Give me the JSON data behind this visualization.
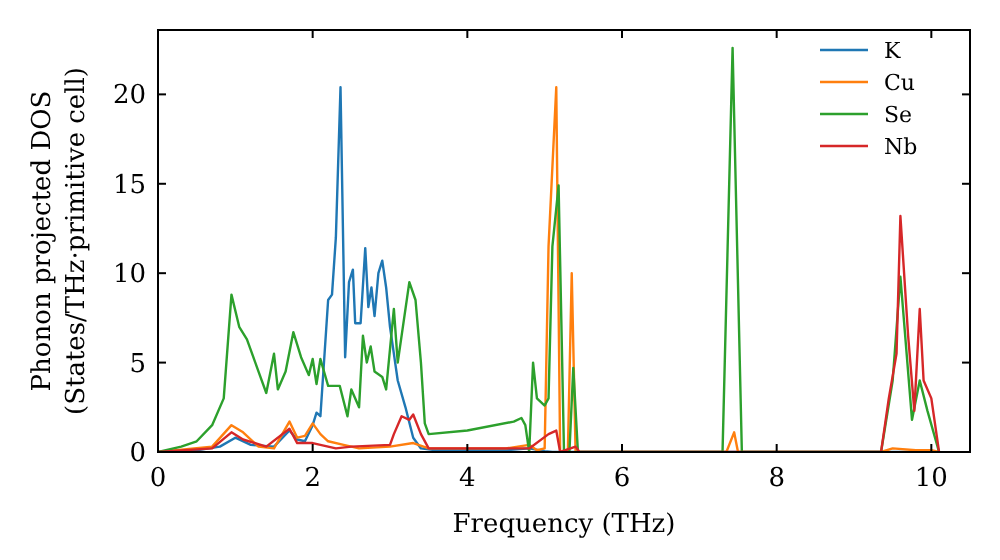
{
  "chart_data": {
    "type": "line",
    "xlabel": "Frequency (THz)",
    "ylabel": "Phonon projected DOS\n(States/THz·primitive cell)",
    "xlim": [
      0,
      10.5
    ],
    "ylim": [
      0,
      23.6
    ],
    "xticks": [
      0,
      2,
      4,
      6,
      8,
      10
    ],
    "yticks": [
      0,
      5,
      10,
      15,
      20
    ],
    "legend": "top right",
    "grid": false,
    "series": [
      {
        "name": "K",
        "color": "#1f77b4",
        "x": [
          0,
          0.5,
          0.8,
          1.0,
          1.2,
          1.5,
          1.7,
          1.8,
          1.9,
          2.0,
          2.05,
          2.1,
          2.2,
          2.25,
          2.3,
          2.36,
          2.42,
          2.47,
          2.52,
          2.55,
          2.62,
          2.68,
          2.72,
          2.76,
          2.8,
          2.85,
          2.9,
          2.95,
          3.0,
          3.05,
          3.1,
          3.2,
          3.3,
          3.4,
          3.6,
          4.5,
          4.8,
          5.0,
          5.1,
          10
        ],
        "values": [
          0,
          0.1,
          0.3,
          0.8,
          0.4,
          0.3,
          1.2,
          0.7,
          0.6,
          1.5,
          2.2,
          2.0,
          8.5,
          8.8,
          12,
          20.4,
          5.3,
          9.5,
          10.2,
          7.2,
          7.2,
          11.4,
          8.1,
          9.2,
          7.6,
          10,
          10.7,
          9.2,
          7.0,
          5.5,
          4,
          2.5,
          0.8,
          0.2,
          0.1,
          0.1,
          0.2,
          0.05,
          0,
          0
        ]
      },
      {
        "name": "Cu",
        "color": "#ff7f0e",
        "x": [
          0,
          0.7,
          0.95,
          1.1,
          1.3,
          1.5,
          1.7,
          1.8,
          1.9,
          2.0,
          2.1,
          2.2,
          2.4,
          2.6,
          3.0,
          3.3,
          3.5,
          4.5,
          4.8,
          4.9,
          5.0,
          5.05,
          5.15,
          5.2,
          5.3,
          5.35,
          5.4,
          7.35,
          7.45,
          7.5,
          9.35,
          9.5,
          9.8,
          10.0,
          10.1
        ],
        "values": [
          0,
          0.3,
          1.5,
          1.1,
          0.3,
          0.2,
          1.7,
          0.8,
          0.9,
          1.6,
          1.0,
          0.6,
          0.4,
          0.2,
          0.3,
          0.5,
          0.2,
          0.2,
          0.4,
          0.1,
          0.2,
          11.5,
          20.4,
          0,
          0,
          10.0,
          0,
          0,
          1.1,
          0,
          0,
          0.2,
          0.1,
          0.1,
          0
        ]
      },
      {
        "name": "Se",
        "color": "#2ca02c",
        "x": [
          0,
          0.3,
          0.5,
          0.7,
          0.85,
          0.95,
          1.05,
          1.15,
          1.3,
          1.4,
          1.5,
          1.55,
          1.65,
          1.75,
          1.85,
          1.95,
          2.0,
          2.05,
          2.1,
          2.2,
          2.35,
          2.45,
          2.5,
          2.6,
          2.65,
          2.7,
          2.75,
          2.8,
          2.9,
          2.95,
          3.05,
          3.1,
          3.25,
          3.33,
          3.4,
          3.45,
          3.5,
          4.0,
          4.6,
          4.7,
          4.75,
          4.8,
          4.85,
          4.9,
          5.0,
          5.05,
          5.1,
          5.18,
          5.25,
          5.32,
          5.37,
          5.43,
          7.3,
          7.43,
          7.55,
          9.35,
          9.5,
          9.6,
          9.75,
          9.85,
          9.95,
          10.1
        ],
        "values": [
          0,
          0.3,
          0.6,
          1.5,
          3,
          8.8,
          7,
          6.3,
          4.5,
          3.3,
          5.5,
          3.5,
          4.5,
          6.7,
          5.3,
          4.3,
          5.2,
          3.8,
          5.2,
          3.7,
          3.7,
          2.0,
          3.5,
          2.5,
          6.5,
          5.0,
          5.9,
          4.5,
          4.2,
          3.5,
          8.0,
          5.0,
          9.5,
          8.5,
          5,
          1.6,
          1.0,
          1.2,
          1.7,
          1.9,
          1.5,
          0,
          5.0,
          3.0,
          2.6,
          3.0,
          11.5,
          14.9,
          0,
          0,
          4.7,
          0,
          0,
          22.6,
          0,
          0,
          4.0,
          9.8,
          1.8,
          4.0,
          2.3,
          0
        ]
      },
      {
        "name": "Nb",
        "color": "#d62728",
        "x": [
          0,
          0.7,
          0.95,
          1.1,
          1.4,
          1.7,
          1.8,
          2.0,
          2.3,
          2.5,
          3.0,
          3.05,
          3.15,
          3.25,
          3.3,
          3.4,
          3.5,
          4.8,
          5.05,
          5.15,
          5.2,
          5.4,
          5.45,
          9.35,
          9.45,
          9.55,
          9.6,
          9.7,
          9.78,
          9.85,
          9.9,
          10.0,
          10.1
        ],
        "values": [
          0,
          0.2,
          1.1,
          0.7,
          0.3,
          1.3,
          0.5,
          0.5,
          0.2,
          0.3,
          0.4,
          1.0,
          2.0,
          1.8,
          2.1,
          1.0,
          0.2,
          0.2,
          1.0,
          1.2,
          0,
          0.3,
          0,
          0,
          3.0,
          5.5,
          13.2,
          6.5,
          2.3,
          8.0,
          4.0,
          3.0,
          0
        ]
      }
    ]
  }
}
